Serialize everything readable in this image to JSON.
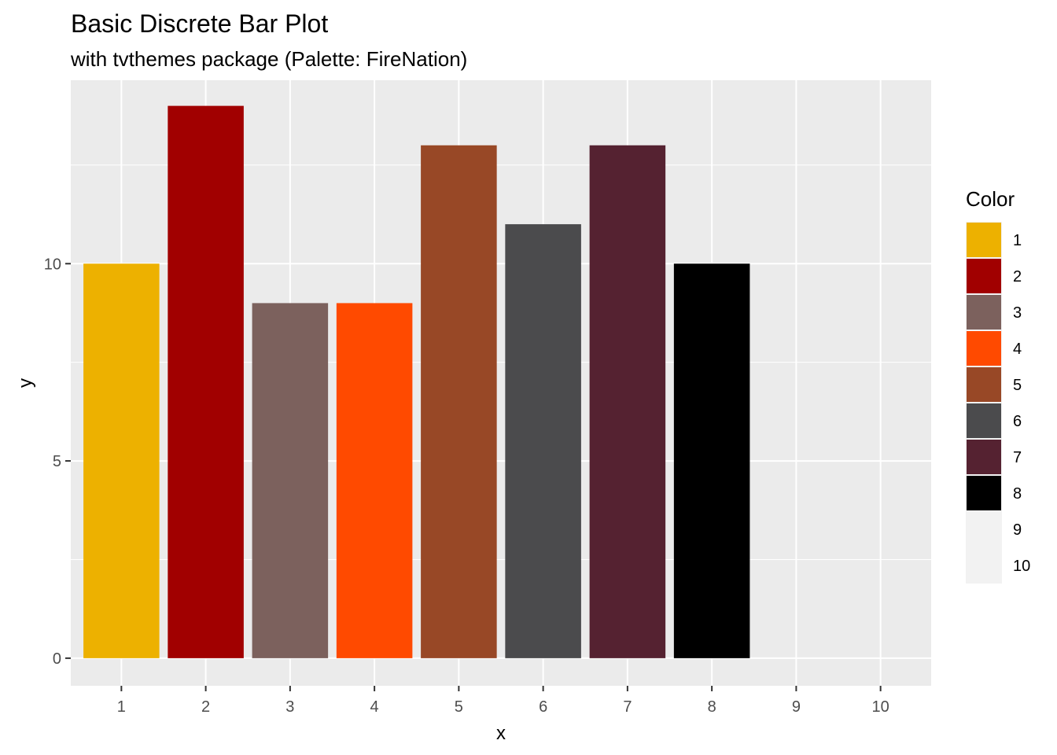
{
  "chart_data": {
    "type": "bar",
    "title": "Basic Discrete Bar Plot",
    "subtitle": "with tvthemes package (Palette: FireNation)",
    "xlabel": "x",
    "ylabel": "y",
    "categories": [
      "1",
      "2",
      "3",
      "4",
      "5",
      "6",
      "7",
      "8",
      "9",
      "10"
    ],
    "values": [
      10,
      14,
      9,
      9,
      13,
      11,
      13,
      10,
      0,
      0
    ],
    "colors": [
      "#EDB100",
      "#A10000",
      "#7C615D",
      "#FF4A00",
      "#984826",
      "#4B4B4D",
      "#552231",
      "#000000",
      "#F2F2F2",
      "#F2F2F2"
    ],
    "ylim": [
      -0.7,
      14.65
    ],
    "yticks": [
      0,
      5,
      10
    ],
    "grid": true,
    "panel_background": "#EBEBEB",
    "legend": {
      "title": "Color",
      "position": "right",
      "items": [
        "1",
        "2",
        "3",
        "4",
        "5",
        "6",
        "7",
        "8",
        "9",
        "10"
      ]
    }
  }
}
